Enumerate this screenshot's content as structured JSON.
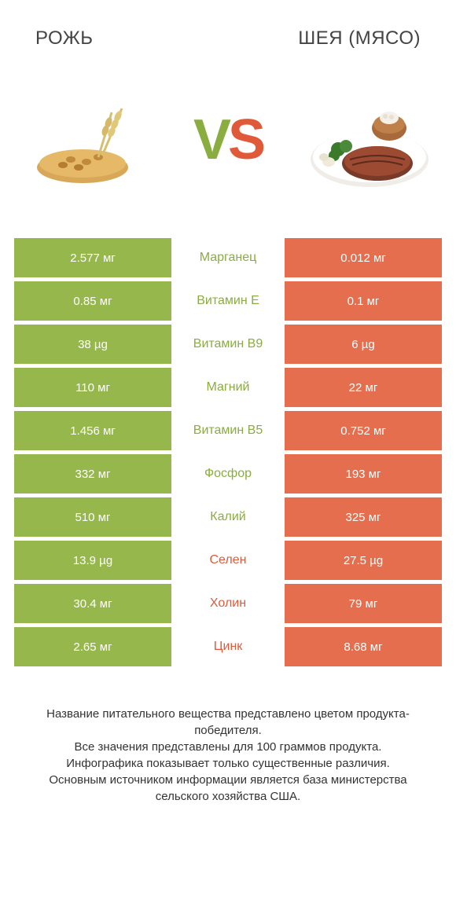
{
  "titles": {
    "left": "РОЖЬ",
    "right": "ШЕЯ (МЯСО)"
  },
  "vs": {
    "v": "V",
    "s": "S"
  },
  "colors": {
    "left_bg": "#96b74c",
    "right_bg": "#e46e4e",
    "left_text": "#8aad3f",
    "right_text": "#e05a3a",
    "row_text": "#ffffff",
    "page_bg": "#ffffff"
  },
  "rows": [
    {
      "left": "2.577 мг",
      "label": "Марганец",
      "right": "0.012 мг",
      "winner": "left"
    },
    {
      "left": "0.85 мг",
      "label": "Витамин E",
      "right": "0.1 мг",
      "winner": "left"
    },
    {
      "left": "38 µg",
      "label": "Витамин B9",
      "right": "6 µg",
      "winner": "left"
    },
    {
      "left": "110 мг",
      "label": "Магний",
      "right": "22 мг",
      "winner": "left"
    },
    {
      "left": "1.456 мг",
      "label": "Витамин B5",
      "right": "0.752 мг",
      "winner": "left"
    },
    {
      "left": "332 мг",
      "label": "Фосфор",
      "right": "193 мг",
      "winner": "left"
    },
    {
      "left": "510 мг",
      "label": "Калий",
      "right": "325 мг",
      "winner": "left"
    },
    {
      "left": "13.9 µg",
      "label": "Селен",
      "right": "27.5 µg",
      "winner": "right"
    },
    {
      "left": "30.4 мг",
      "label": "Холин",
      "right": "79 мг",
      "winner": "right"
    },
    {
      "left": "2.65 мг",
      "label": "Цинк",
      "right": "8.68 мг",
      "winner": "right"
    }
  ],
  "footer": {
    "l1": "Название питательного вещества представлено цветом продукта-победителя.",
    "l2": "Все значения представлены для 100 граммов продукта.",
    "l3": "Инфографика показывает только существенные различия.",
    "l4": "Основным источником информации является база министерства сельского хозяйства США."
  }
}
